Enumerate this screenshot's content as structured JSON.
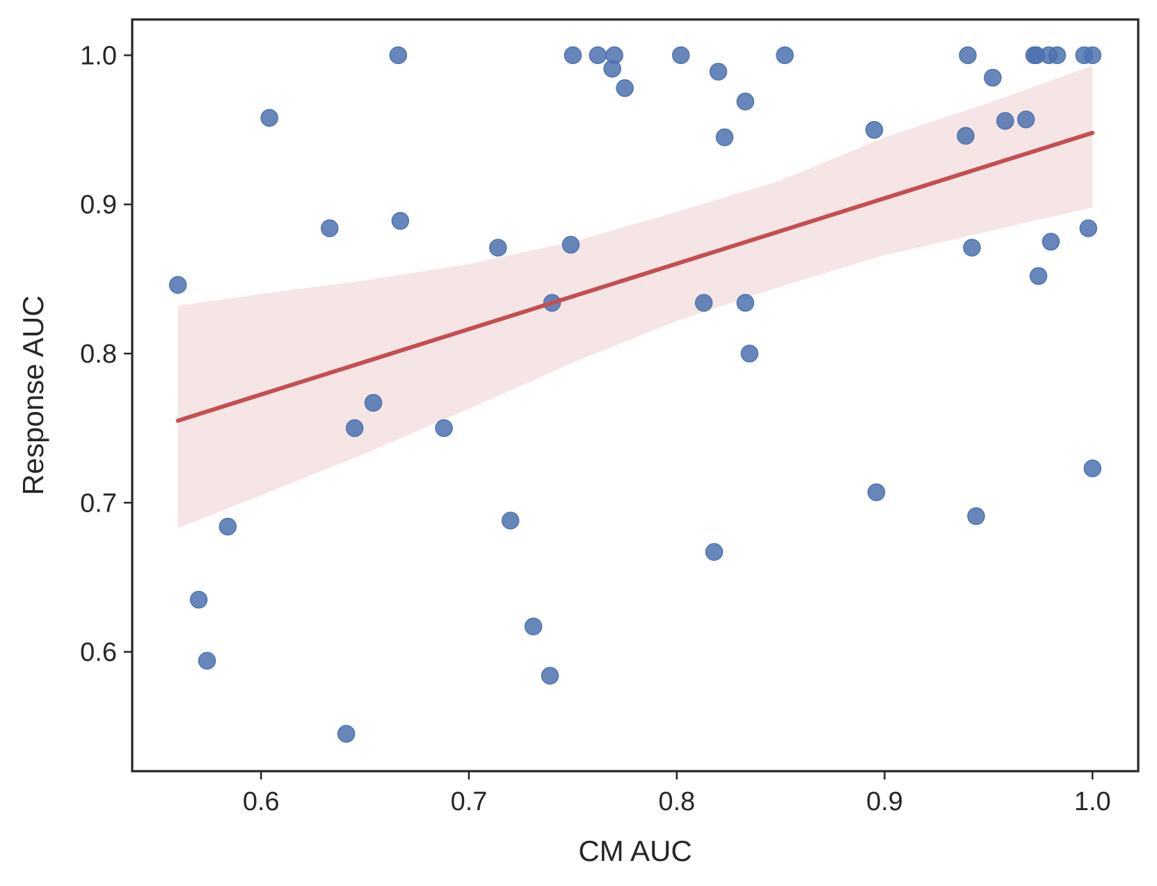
{
  "chart_data": {
    "type": "scatter",
    "title": "",
    "xlabel": "CM AUC",
    "ylabel": "Response AUC",
    "xlim": [
      0.538,
      1.022
    ],
    "ylim": [
      0.52,
      1.024
    ],
    "xticks": [
      0.6,
      0.7,
      0.8,
      0.9,
      1.0
    ],
    "yticks": [
      0.6,
      0.7,
      0.8,
      0.9,
      1.0
    ],
    "grid": false,
    "colors": {
      "points": "#4c72b0",
      "regression": "#c44e52",
      "axes": "#262626"
    },
    "regression": {
      "x": [
        0.56,
        1.0
      ],
      "y": [
        0.755,
        0.948
      ],
      "ci_lower": [
        [
          0.56,
          0.683
        ],
        [
          0.6,
          0.705
        ],
        [
          0.65,
          0.733
        ],
        [
          0.7,
          0.763
        ],
        [
          0.75,
          0.794
        ],
        [
          0.8,
          0.822
        ],
        [
          0.85,
          0.845
        ],
        [
          0.9,
          0.866
        ],
        [
          0.95,
          0.882
        ],
        [
          1.0,
          0.898
        ]
      ],
      "ci_upper": [
        [
          0.56,
          0.832
        ],
        [
          0.6,
          0.84
        ],
        [
          0.65,
          0.849
        ],
        [
          0.7,
          0.86
        ],
        [
          0.75,
          0.875
        ],
        [
          0.8,
          0.895
        ],
        [
          0.85,
          0.916
        ],
        [
          0.9,
          0.945
        ],
        [
          0.95,
          0.968
        ],
        [
          1.0,
          0.993
        ]
      ]
    },
    "points": [
      [
        0.56,
        0.846
      ],
      [
        0.57,
        0.635
      ],
      [
        0.574,
        0.594
      ],
      [
        0.584,
        0.684
      ],
      [
        0.604,
        0.958
      ],
      [
        0.633,
        0.884
      ],
      [
        0.641,
        0.545
      ],
      [
        0.645,
        0.75
      ],
      [
        0.654,
        0.767
      ],
      [
        0.666,
        1.0
      ],
      [
        0.667,
        0.889
      ],
      [
        0.688,
        0.75
      ],
      [
        0.714,
        0.871
      ],
      [
        0.72,
        0.688
      ],
      [
        0.731,
        0.617
      ],
      [
        0.739,
        0.584
      ],
      [
        0.74,
        0.834
      ],
      [
        0.749,
        0.873
      ],
      [
        0.75,
        1.0
      ],
      [
        0.762,
        1.0
      ],
      [
        0.769,
        0.991
      ],
      [
        0.77,
        1.0
      ],
      [
        0.775,
        0.978
      ],
      [
        0.802,
        1.0
      ],
      [
        0.813,
        0.834
      ],
      [
        0.818,
        0.667
      ],
      [
        0.82,
        0.989
      ],
      [
        0.823,
        0.945
      ],
      [
        0.833,
        0.969
      ],
      [
        0.833,
        0.834
      ],
      [
        0.835,
        0.8
      ],
      [
        0.852,
        1.0
      ],
      [
        0.895,
        0.95
      ],
      [
        0.896,
        0.707
      ],
      [
        0.939,
        0.946
      ],
      [
        0.94,
        1.0
      ],
      [
        0.942,
        0.871
      ],
      [
        0.944,
        0.691
      ],
      [
        0.952,
        0.985
      ],
      [
        0.958,
        0.956
      ],
      [
        0.968,
        0.957
      ],
      [
        0.972,
        1.0
      ],
      [
        0.973,
        1.0
      ],
      [
        0.974,
        0.852
      ],
      [
        0.979,
        1.0
      ],
      [
        0.98,
        0.875
      ],
      [
        0.983,
        1.0
      ],
      [
        0.996,
        1.0
      ],
      [
        0.998,
        0.884
      ],
      [
        1.0,
        1.0
      ],
      [
        1.0,
        0.723
      ]
    ]
  }
}
